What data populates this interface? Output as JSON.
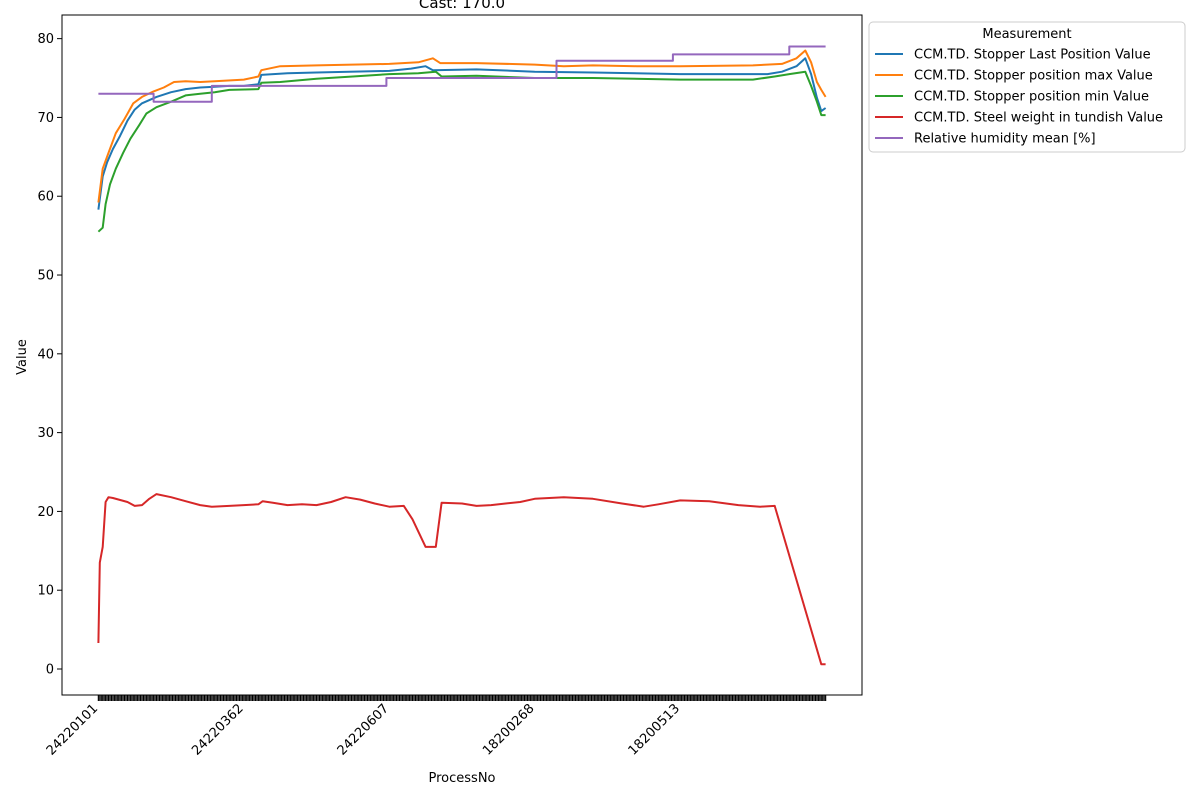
{
  "chart_data": {
    "type": "line",
    "title": "Cast: 170.0",
    "xlabel": "ProcessNo",
    "ylabel": "Value",
    "ylim": [
      -3.3,
      83.0
    ],
    "yticks": [
      0,
      10,
      20,
      30,
      40,
      50,
      60,
      70,
      80
    ],
    "x_tick_labels": [
      "24220101",
      "24220362",
      "24220607",
      "18200268",
      "18200513"
    ],
    "x_tick_positions": [
      0,
      100,
      200,
      300,
      400
    ],
    "x_range": [
      -25,
      525
    ],
    "x_max": 500,
    "grid": false,
    "legend": {
      "title": "Measurement",
      "placement": "outside-upper-right"
    },
    "series": [
      {
        "name": "CCM.TD. Stopper Last Position Value",
        "color": "#1f77b4",
        "points": [
          [
            0,
            58.3
          ],
          [
            3,
            62.5
          ],
          [
            6,
            64.3
          ],
          [
            10,
            66.0
          ],
          [
            15,
            67.7
          ],
          [
            20,
            69.6
          ],
          [
            25,
            71.0
          ],
          [
            30,
            71.8
          ],
          [
            40,
            72.6
          ],
          [
            50,
            73.2
          ],
          [
            60,
            73.6
          ],
          [
            70,
            73.8
          ],
          [
            80,
            73.9
          ],
          [
            90,
            74.0
          ],
          [
            100,
            74.0
          ],
          [
            110,
            74.2
          ],
          [
            112,
            75.4
          ],
          [
            130,
            75.6
          ],
          [
            150,
            75.7
          ],
          [
            200,
            75.9
          ],
          [
            215,
            76.2
          ],
          [
            225,
            76.5
          ],
          [
            230,
            76.0
          ],
          [
            260,
            76.1
          ],
          [
            300,
            75.8
          ],
          [
            340,
            75.7
          ],
          [
            400,
            75.5
          ],
          [
            460,
            75.5
          ],
          [
            470,
            75.8
          ],
          [
            480,
            76.5
          ],
          [
            486,
            77.5
          ],
          [
            490,
            75.5
          ],
          [
            494,
            72.5
          ],
          [
            497,
            70.8
          ],
          [
            500,
            71.2
          ]
        ]
      },
      {
        "name": "CCM.TD. Stopper position max Value",
        "color": "#ff7f0e",
        "points": [
          [
            0,
            59.2
          ],
          [
            3,
            63.5
          ],
          [
            7,
            65.5
          ],
          [
            12,
            68.0
          ],
          [
            18,
            69.8
          ],
          [
            24,
            71.8
          ],
          [
            30,
            72.6
          ],
          [
            38,
            73.3
          ],
          [
            45,
            73.8
          ],
          [
            52,
            74.5
          ],
          [
            60,
            74.6
          ],
          [
            70,
            74.5
          ],
          [
            80,
            74.6
          ],
          [
            100,
            74.8
          ],
          [
            110,
            75.2
          ],
          [
            112,
            76.0
          ],
          [
            125,
            76.5
          ],
          [
            150,
            76.6
          ],
          [
            200,
            76.8
          ],
          [
            220,
            77.0
          ],
          [
            230,
            77.5
          ],
          [
            235,
            76.9
          ],
          [
            260,
            76.9
          ],
          [
            300,
            76.7
          ],
          [
            320,
            76.5
          ],
          [
            340,
            76.6
          ],
          [
            370,
            76.5
          ],
          [
            400,
            76.5
          ],
          [
            450,
            76.6
          ],
          [
            470,
            76.8
          ],
          [
            480,
            77.5
          ],
          [
            486,
            78.5
          ],
          [
            490,
            77.0
          ],
          [
            494,
            74.5
          ],
          [
            497,
            73.5
          ],
          [
            500,
            72.6
          ]
        ]
      },
      {
        "name": "CCM.TD. Stopper position min Value",
        "color": "#2ca02c",
        "points": [
          [
            0,
            55.5
          ],
          [
            3,
            56.0
          ],
          [
            5,
            59.0
          ],
          [
            8,
            61.5
          ],
          [
            12,
            63.5
          ],
          [
            17,
            65.5
          ],
          [
            22,
            67.3
          ],
          [
            28,
            69.0
          ],
          [
            33,
            70.5
          ],
          [
            40,
            71.3
          ],
          [
            50,
            72.0
          ],
          [
            60,
            72.8
          ],
          [
            70,
            73.0
          ],
          [
            80,
            73.2
          ],
          [
            90,
            73.5
          ],
          [
            110,
            73.6
          ],
          [
            112,
            74.4
          ],
          [
            125,
            74.5
          ],
          [
            150,
            74.9
          ],
          [
            175,
            75.2
          ],
          [
            200,
            75.5
          ],
          [
            220,
            75.6
          ],
          [
            232,
            75.8
          ],
          [
            236,
            75.2
          ],
          [
            260,
            75.3
          ],
          [
            300,
            75.0
          ],
          [
            340,
            75.0
          ],
          [
            400,
            74.8
          ],
          [
            450,
            74.8
          ],
          [
            465,
            75.2
          ],
          [
            475,
            75.5
          ],
          [
            486,
            75.8
          ],
          [
            490,
            74.0
          ],
          [
            494,
            72.0
          ],
          [
            497,
            70.3
          ],
          [
            500,
            70.3
          ]
        ]
      },
      {
        "name": "CCM.TD. Steel weight in tundish Value",
        "color": "#d62728",
        "points": [
          [
            0,
            3.3
          ],
          [
            1,
            13.5
          ],
          [
            3,
            15.5
          ],
          [
            5,
            21.2
          ],
          [
            7,
            21.8
          ],
          [
            10,
            21.7
          ],
          [
            20,
            21.2
          ],
          [
            25,
            20.7
          ],
          [
            30,
            20.8
          ],
          [
            35,
            21.6
          ],
          [
            40,
            22.2
          ],
          [
            50,
            21.8
          ],
          [
            60,
            21.3
          ],
          [
            70,
            20.8
          ],
          [
            78,
            20.6
          ],
          [
            90,
            20.7
          ],
          [
            100,
            20.8
          ],
          [
            110,
            20.9
          ],
          [
            113,
            21.3
          ],
          [
            120,
            21.1
          ],
          [
            130,
            20.8
          ],
          [
            140,
            20.9
          ],
          [
            150,
            20.8
          ],
          [
            160,
            21.2
          ],
          [
            170,
            21.8
          ],
          [
            180,
            21.5
          ],
          [
            190,
            21.0
          ],
          [
            200,
            20.6
          ],
          [
            210,
            20.7
          ],
          [
            216,
            19.0
          ],
          [
            225,
            15.5
          ],
          [
            232,
            15.5
          ],
          [
            236,
            21.1
          ],
          [
            250,
            21.0
          ],
          [
            260,
            20.7
          ],
          [
            270,
            20.8
          ],
          [
            280,
            21.0
          ],
          [
            290,
            21.2
          ],
          [
            300,
            21.6
          ],
          [
            320,
            21.8
          ],
          [
            340,
            21.6
          ],
          [
            360,
            21.0
          ],
          [
            375,
            20.6
          ],
          [
            385,
            20.9
          ],
          [
            400,
            21.4
          ],
          [
            420,
            21.3
          ],
          [
            440,
            20.8
          ],
          [
            455,
            20.6
          ],
          [
            465,
            20.7
          ],
          [
            494,
            2.5
          ],
          [
            497,
            0.6
          ],
          [
            500,
            0.6
          ]
        ]
      },
      {
        "name": "Relative humidity mean [%]",
        "color": "#9467bd",
        "points": [
          [
            0,
            73.0
          ],
          [
            38,
            73.0
          ],
          [
            38,
            72.0
          ],
          [
            78,
            72.0
          ],
          [
            78,
            74.0
          ],
          [
            198,
            74.0
          ],
          [
            198,
            75.0
          ],
          [
            315,
            75.0
          ],
          [
            315,
            77.2
          ],
          [
            395,
            77.2
          ],
          [
            395,
            78.0
          ],
          [
            475,
            78.0
          ],
          [
            475,
            79.0
          ],
          [
            500,
            79.0
          ]
        ]
      }
    ]
  }
}
